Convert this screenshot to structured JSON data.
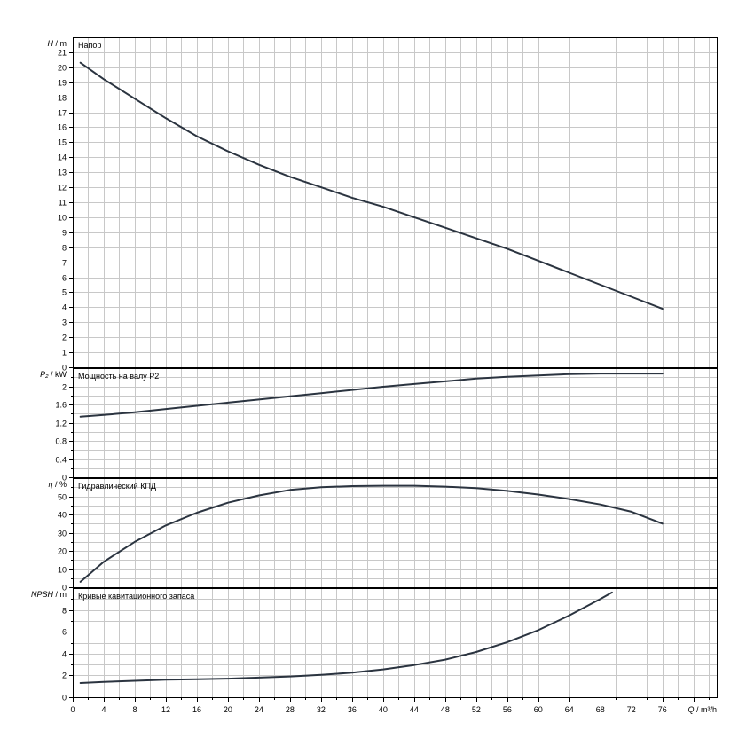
{
  "chart_data": [
    {
      "id": "head",
      "type": "line",
      "title": "Напор",
      "ylabel_var": "H",
      "ylabel_unit": "m",
      "ylim": [
        0,
        22
      ],
      "yticks": [
        0,
        1,
        2,
        3,
        4,
        5,
        6,
        7,
        8,
        9,
        10,
        11,
        12,
        13,
        14,
        15,
        16,
        17,
        18,
        19,
        20,
        21
      ],
      "grid": true,
      "series": [
        {
          "x": [
            1,
            4,
            8,
            12,
            16,
            20,
            24,
            28,
            32,
            36,
            40,
            44,
            48,
            52,
            56,
            60,
            64,
            68,
            72,
            76
          ],
          "y": [
            20.3,
            19.2,
            17.9,
            16.6,
            15.4,
            14.4,
            13.5,
            12.7,
            12.0,
            11.3,
            10.7,
            10.0,
            9.3,
            8.6,
            7.9,
            7.1,
            6.3,
            5.5,
            4.7,
            3.9
          ]
        }
      ]
    },
    {
      "id": "power",
      "type": "line",
      "title": "Мощность на валу P2",
      "ylabel_var": "P₂",
      "ylabel_unit": "kW",
      "ylim": [
        0,
        2.4
      ],
      "yticks": [
        0,
        0.4,
        0.8,
        1.2,
        1.6,
        2
      ],
      "ytick_labels": [
        "0",
        "0.4",
        "0.8",
        "1.2",
        "1.6",
        "2"
      ],
      "grid": true,
      "series": [
        {
          "x": [
            1,
            4,
            8,
            12,
            16,
            20,
            24,
            28,
            32,
            36,
            40,
            44,
            48,
            52,
            56,
            60,
            64,
            68,
            72,
            76
          ],
          "y": [
            1.33,
            1.37,
            1.43,
            1.5,
            1.57,
            1.64,
            1.71,
            1.78,
            1.85,
            1.92,
            1.99,
            2.05,
            2.11,
            2.17,
            2.21,
            2.24,
            2.27,
            2.28,
            2.28,
            2.28
          ]
        }
      ]
    },
    {
      "id": "efficiency",
      "type": "line",
      "title": "Гидравлический КПД",
      "ylabel_var": "η",
      "ylabel_unit": "%",
      "ylim": [
        0,
        60
      ],
      "yticks": [
        0,
        10,
        20,
        30,
        40,
        50
      ],
      "grid": true,
      "series": [
        {
          "x": [
            1,
            4,
            8,
            12,
            16,
            20,
            24,
            28,
            32,
            36,
            40,
            44,
            48,
            52,
            56,
            60,
            64,
            68,
            72,
            76
          ],
          "y": [
            3,
            14,
            25,
            34,
            41,
            46.5,
            50.5,
            53.5,
            55,
            55.6,
            55.8,
            55.8,
            55.3,
            54.5,
            53,
            51,
            48.5,
            45.5,
            41.5,
            35
          ]
        }
      ]
    },
    {
      "id": "npsh",
      "type": "line",
      "title": "Кривые кавитационного запаса",
      "ylabel_var": "NPSH",
      "ylabel_unit": "m",
      "ylim": [
        0,
        10
      ],
      "yticks": [
        0,
        2,
        4,
        6,
        8
      ],
      "grid": true,
      "series": [
        {
          "x": [
            1,
            4,
            8,
            12,
            16,
            20,
            24,
            28,
            32,
            36,
            40,
            44,
            48,
            52,
            56,
            60,
            64,
            68,
            69.5
          ],
          "y": [
            1.3,
            1.4,
            1.5,
            1.6,
            1.65,
            1.7,
            1.8,
            1.9,
            2.05,
            2.25,
            2.55,
            2.95,
            3.45,
            4.15,
            5.05,
            6.15,
            7.5,
            9.0,
            9.6
          ]
        }
      ]
    }
  ],
  "x_axis": {
    "label_var": "Q",
    "label_unit": "m³/h",
    "ticks": [
      0,
      4,
      8,
      12,
      16,
      20,
      24,
      28,
      32,
      36,
      40,
      44,
      48,
      52,
      56,
      60,
      64,
      68,
      72,
      76
    ],
    "xlim": [
      0,
      83
    ]
  },
  "colors": {
    "curve": "#2b3440",
    "grid": "#c8c8c8",
    "frame": "#000000"
  }
}
